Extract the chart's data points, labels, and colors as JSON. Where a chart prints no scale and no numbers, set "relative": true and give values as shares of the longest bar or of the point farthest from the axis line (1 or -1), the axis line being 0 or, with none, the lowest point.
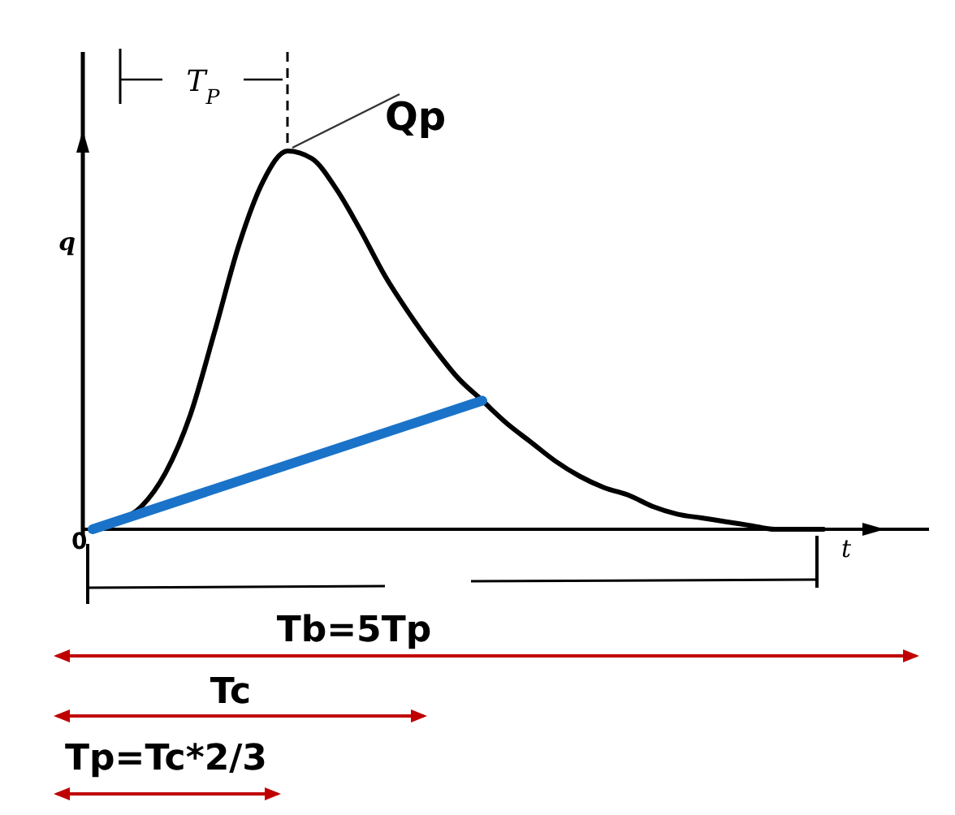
{
  "chart_data": {
    "type": "line",
    "relative": true,
    "xlabel": "t",
    "ylabel": "q",
    "categories": [
      null,
      null,
      null,
      null,
      null,
      null,
      null,
      null,
      null,
      null,
      null,
      null,
      null,
      null,
      null,
      null,
      null,
      null,
      null,
      null,
      null,
      null,
      null,
      null,
      null,
      null,
      null,
      null,
      null,
      null,
      null
    ],
    "series": [
      {
        "color": "#000000",
        "values": [
          0,
          0.02,
          0.06,
          0.15,
          0.3,
          0.52,
          0.75,
          0.92,
          1,
          0.98,
          0.9,
          0.79,
          0.67,
          0.57,
          0.48,
          0.4,
          0.34,
          0.28,
          0.23,
          0.18,
          0.14,
          0.11,
          0.09,
          0.06,
          0.04,
          0.03,
          0.02,
          0.01,
          0,
          0,
          0
        ]
      },
      {
        "color": "#1a73c8",
        "values": [
          0,
          null,
          null,
          null,
          null,
          null,
          null,
          null,
          null,
          null,
          null,
          null,
          null,
          null,
          null,
          null,
          0.34,
          null,
          null,
          null,
          null,
          null,
          null,
          null,
          null,
          null,
          null,
          null,
          null,
          null,
          null
        ]
      }
    ],
    "annotations": [
      "Qp",
      "T$_{P}$",
      "0",
      "Tb=5Tp",
      "Tc",
      "Tp=Tc*2/3"
    ]
  }
}
